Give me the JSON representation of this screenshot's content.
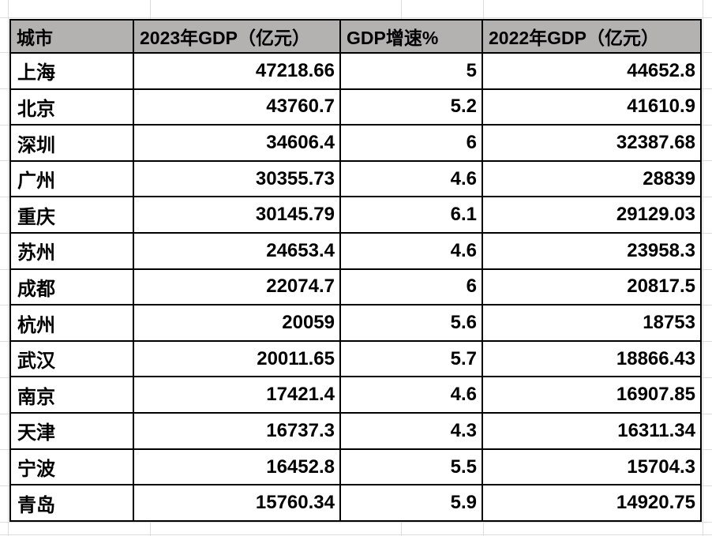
{
  "colors": {
    "header_bg": "#b4b1b1",
    "border": "#000000",
    "gridline": "#dcdcdc",
    "bg": "#ffffff",
    "text": "#000000"
  },
  "chart_data": {
    "type": "table",
    "title": "",
    "columns": [
      "城市",
      "2023年GDP（亿元）",
      "GDP增速%",
      "2022年GDP（亿元）"
    ],
    "rows": [
      [
        "上海",
        "47218.66",
        "5",
        "44652.8"
      ],
      [
        "北京",
        "43760.7",
        "5.2",
        "41610.9"
      ],
      [
        "深圳",
        "34606.4",
        "6",
        "32387.68"
      ],
      [
        "广州",
        "30355.73",
        "4.6",
        "28839"
      ],
      [
        "重庆",
        "30145.79",
        "6.1",
        "29129.03"
      ],
      [
        "苏州",
        "24653.4",
        "4.6",
        "23958.3"
      ],
      [
        "成都",
        "22074.7",
        "6",
        "20817.5"
      ],
      [
        "杭州",
        "20059",
        "5.6",
        "18753"
      ],
      [
        "武汉",
        "20011.65",
        "5.7",
        "18866.43"
      ],
      [
        "南京",
        "17421.4",
        "4.6",
        "16907.85"
      ],
      [
        "天津",
        "16737.3",
        "4.3",
        "16311.34"
      ],
      [
        "宁波",
        "16452.8",
        "5.5",
        "15704.3"
      ],
      [
        "青岛",
        "15760.34",
        "5.9",
        "14920.75"
      ]
    ]
  }
}
